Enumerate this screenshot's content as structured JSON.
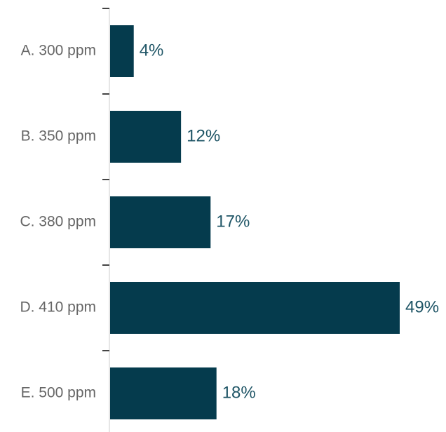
{
  "chart_data": {
    "type": "bar",
    "orientation": "horizontal",
    "title": "",
    "xlabel": "",
    "ylabel": "",
    "categories": [
      "A. 300 ppm",
      "B. 350 ppm",
      "C. 380 ppm",
      "D. 410 ppm",
      "E. 500 ppm"
    ],
    "values": [
      4,
      12,
      17,
      49,
      18
    ],
    "value_labels": [
      "4%",
      "12%",
      "17%",
      "49%",
      "18%"
    ],
    "xlim": [
      0,
      49
    ],
    "grid": false,
    "legend": "none",
    "colors": {
      "bar": "#053b4d",
      "value_label": "#1f5566",
      "category_label": "#666666",
      "axis": "#444444"
    }
  }
}
